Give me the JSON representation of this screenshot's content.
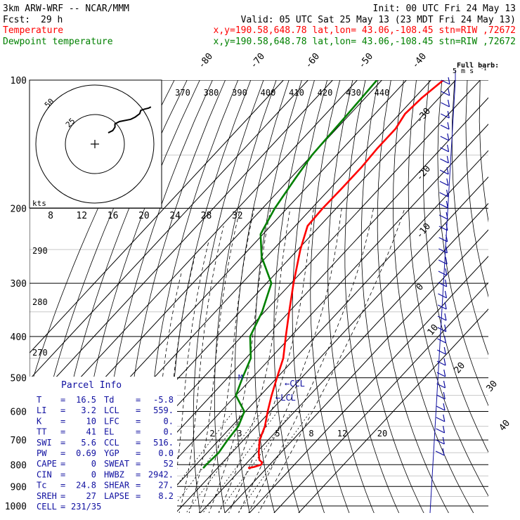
{
  "header": {
    "model": "3km ARW-WRF -- NCAR/MMM",
    "init": "Init: 00 UTC Fri 24 May 13",
    "fcst_label": "Fcst:",
    "fcst_value": "29 h",
    "valid": "Valid: 05 UTC Sat 25 May 13 (23 MDT Fri 24 May 13)",
    "temp_label": "Temperature",
    "temp_loc": "x,y=190.58,648.78   lat,lon= 43.06,-108.45  stn=RIW ,72672",
    "dew_label": "Dewpoint temperature",
    "dew_loc": "x,y=190.58,648.78   lat,lon= 43.06,-108.45  stn=RIW ,72672"
  },
  "colors": {
    "temperature": "#ff0000",
    "dewpoint": "#008000",
    "wind": "#1010a0",
    "isobar": "#000000"
  },
  "chart_data": {
    "type": "line",
    "title": "",
    "xlabel": "",
    "ylabel": "",
    "pressure_levels": [
      "100",
      "200",
      "300",
      "400",
      "500",
      "600",
      "700",
      "800",
      "900",
      "1000"
    ],
    "isotherm_labels": [
      "-80",
      "-70",
      "-60",
      "-50",
      "-40",
      "-30",
      "-20",
      "-10",
      "0",
      "10",
      "20",
      "30",
      "40"
    ],
    "theta_labels": [
      "370",
      "380",
      "390",
      "400",
      "410",
      "420",
      "430",
      "440"
    ],
    "theta_left_labels": [
      "290",
      "280",
      "270"
    ],
    "mixing_ratio_labels": [
      "2",
      "3",
      "5",
      "8",
      "12",
      "20"
    ],
    "hodograph": {
      "units_label": "kts",
      "ring_labels": [
        "25",
        "50"
      ],
      "speed_ticks": [
        "8",
        "12",
        "16",
        "20",
        "24",
        "28",
        "32"
      ]
    },
    "wind_scale": {
      "title": "Full barb:",
      "value": "5 m s",
      "exp": "-1"
    },
    "series": [
      {
        "name": "Temperature",
        "profile": [
          [
            100,
            -55
          ],
          [
            110,
            -57
          ],
          [
            120,
            -57.8
          ],
          [
            130,
            -56
          ],
          [
            145,
            -56
          ],
          [
            160,
            -55.3
          ],
          [
            180,
            -55.3
          ],
          [
            200,
            -55.5
          ],
          [
            220,
            -55
          ],
          [
            250,
            -49
          ],
          [
            300,
            -39
          ],
          [
            350,
            -30
          ],
          [
            400,
            -22
          ],
          [
            450,
            -14.8
          ],
          [
            500,
            -10
          ],
          [
            550,
            -5.5
          ],
          [
            600,
            -1
          ],
          [
            650,
            3.5
          ],
          [
            700,
            6.5
          ],
          [
            750,
            11
          ],
          [
            780,
            14
          ],
          [
            790,
            16
          ],
          [
            800,
            16.5
          ],
          [
            810,
            14.5
          ],
          [
            815,
            12.5
          ]
        ]
      },
      {
        "name": "Dewpoint temperature",
        "profile": [
          [
            100,
            -82
          ],
          [
            120,
            -81
          ],
          [
            150,
            -80
          ],
          [
            170,
            -78
          ],
          [
            200,
            -75
          ],
          [
            230,
            -71
          ],
          [
            260,
            -62
          ],
          [
            300,
            -48
          ],
          [
            350,
            -41
          ],
          [
            400,
            -36.5
          ],
          [
            450,
            -28
          ],
          [
            500,
            -24
          ],
          [
            550,
            -20
          ],
          [
            600,
            -10.5
          ],
          [
            650,
            -7.3
          ],
          [
            700,
            -6.5
          ],
          [
            750,
            -5.3
          ],
          [
            780,
            -5.6
          ],
          [
            800,
            -5.8
          ],
          [
            815,
            -5.8
          ]
        ]
      }
    ],
    "hodograph_trace": [
      [
        0,
        0
      ],
      [
        4,
        -2
      ],
      [
        6,
        -5
      ],
      [
        6,
        -8
      ],
      [
        10,
        -10
      ],
      [
        20,
        -12
      ],
      [
        24,
        -14
      ],
      [
        28,
        -17
      ],
      [
        29,
        -20
      ],
      [
        32,
        -21
      ],
      [
        36,
        -22
      ],
      [
        38,
        -23
      ]
    ]
  },
  "parcel_info": {
    "title": "Parcel Info",
    "rows": [
      {
        "k1": "T",
        "v1": "16.5",
        "k2": "Td",
        "v2": "-5.8"
      },
      {
        "k1": "LI",
        "v1": "3.2",
        "k2": "LCL",
        "v2": "559."
      },
      {
        "k1": "K",
        "v1": "10",
        "k2": "LFC",
        "v2": "0."
      },
      {
        "k1": "TT",
        "v1": "41",
        "k2": "EL",
        "v2": "0."
      },
      {
        "k1": "SWI",
        "v1": "5.6",
        "k2": "CCL",
        "v2": "516."
      },
      {
        "k1": "PW",
        "v1": "0.69",
        "k2": "YGP",
        "v2": "0.0"
      },
      {
        "k1": "CAPE",
        "v1": "0",
        "k2": "SWEAT",
        "v2": "52"
      },
      {
        "k1": "CIN",
        "v1": "0",
        "k2": "HWBZ",
        "v2": "2942."
      },
      {
        "k1": "Tc",
        "v1": "24.8",
        "k2": "SHEAR",
        "v2": "27."
      },
      {
        "k1": "SREH",
        "v1": "27",
        "k2": "LAPSE",
        "v2": "8.2"
      }
    ],
    "cell_label": "CELL",
    "cell_value": "231/35"
  },
  "markers": {
    "ccl": "←CCL",
    "lcl": "←LCL",
    "m": "M"
  }
}
